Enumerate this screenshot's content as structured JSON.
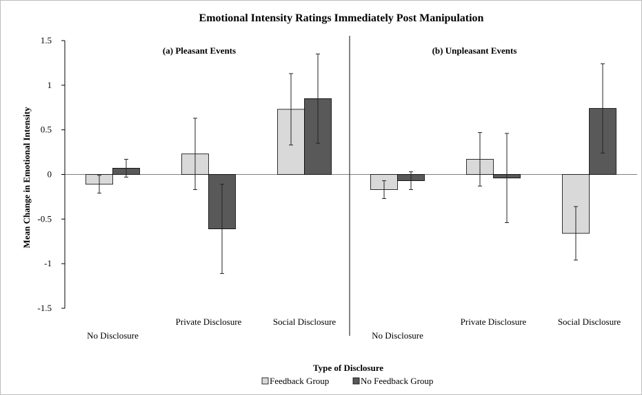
{
  "chart_data": {
    "type": "bar",
    "title": "Emotional Intensity Ratings Immediately Post Manipulation",
    "xlabel": "Type of Disclosure",
    "ylabel": "Mean Change in Emotional Intensity",
    "ylim": [
      -1.5,
      1.5
    ],
    "yticks": [
      "1.5",
      "1",
      "0.5",
      "0",
      "-0.5",
      "-1",
      "-1.5"
    ],
    "grid": false,
    "legend": "bottom-center",
    "panels": [
      {
        "title": "(a) Pleasant Events",
        "categories": [
          "No Disclosure",
          "Private Disclosure",
          "Social Disclosure"
        ],
        "series": [
          {
            "name": "Feedback Group",
            "values": [
              -0.11,
              0.23,
              0.73
            ],
            "errors": [
              0.1,
              0.4,
              0.4
            ]
          },
          {
            "name": "No Feedback Group",
            "values": [
              0.07,
              -0.61,
              0.85
            ],
            "errors": [
              0.1,
              0.5,
              0.5
            ]
          }
        ]
      },
      {
        "title": "(b) Unpleasant Events",
        "categories": [
          "No Disclosure",
          "Private Disclosure",
          "Social Disclosure"
        ],
        "series": [
          {
            "name": "Feedback Group",
            "values": [
              -0.17,
              0.17,
              -0.66
            ],
            "errors": [
              0.1,
              0.3,
              0.3
            ]
          },
          {
            "name": "No Feedback Group",
            "values": [
              -0.07,
              -0.04,
              0.74
            ],
            "errors": [
              0.1,
              0.5,
              0.5
            ]
          }
        ]
      }
    ],
    "colors": {
      "Feedback Group": "#d9d9d9",
      "No Feedback Group": "#595959"
    }
  }
}
